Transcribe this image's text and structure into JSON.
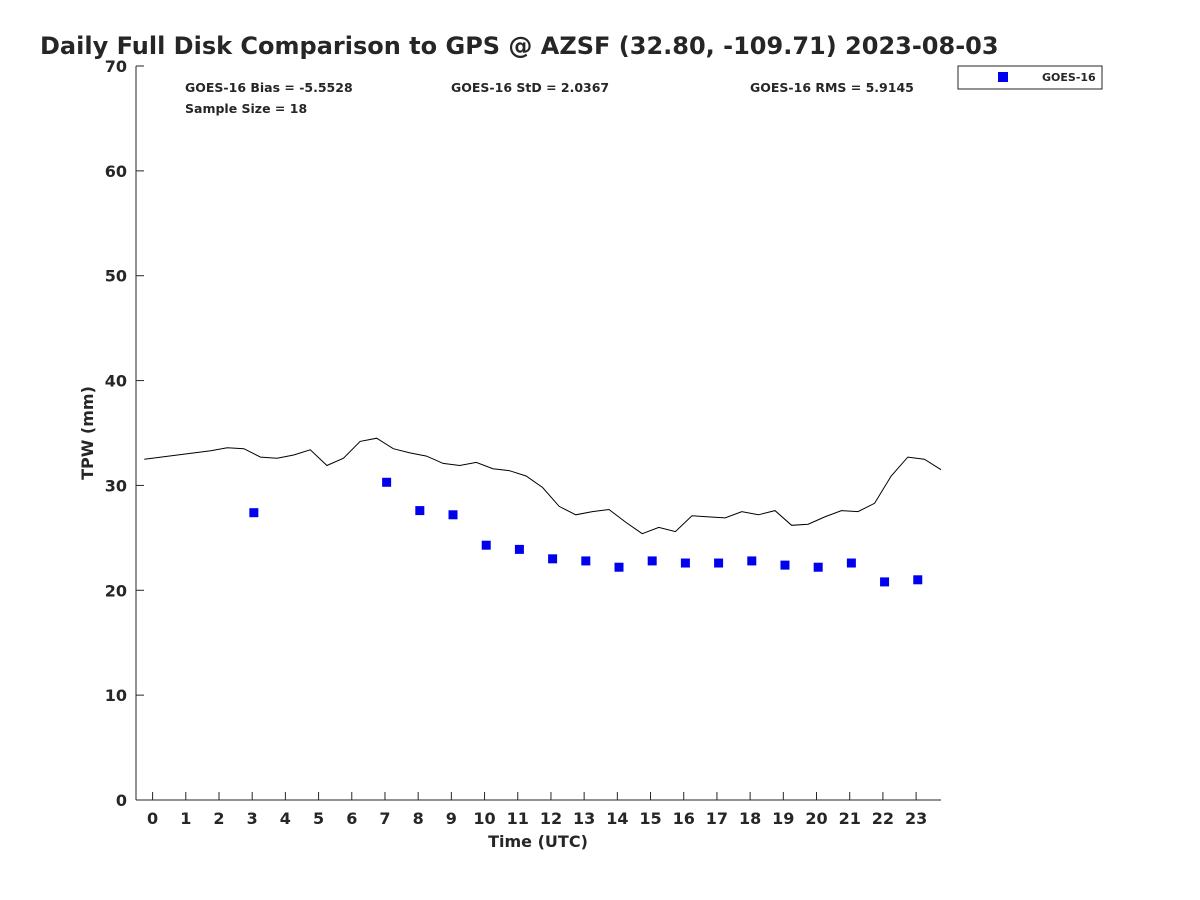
{
  "chart_data": {
    "type": "scatter",
    "title": "Daily Full Disk Comparison to GPS @ AZSF (32.80, -109.71) 2023-08-03",
    "xlabel": "Time (UTC)",
    "ylabel": "TPW (mm)",
    "xlim": [
      -0.5,
      23.75
    ],
    "ylim": [
      0,
      70
    ],
    "x_ticks": [
      0,
      1,
      2,
      3,
      4,
      5,
      6,
      7,
      8,
      9,
      10,
      11,
      12,
      13,
      14,
      15,
      16,
      17,
      18,
      19,
      20,
      21,
      22,
      23
    ],
    "x_tick_labels": [
      "0",
      "1",
      "2",
      "3",
      "4",
      "5",
      "6",
      "7",
      "8",
      "9",
      "10",
      "11",
      "12",
      "13",
      "14",
      "15",
      "16",
      "17",
      "18",
      "19",
      "20",
      "21",
      "22",
      "23"
    ],
    "y_ticks": [
      0,
      10,
      20,
      30,
      40,
      50,
      60,
      70
    ],
    "y_tick_labels": [
      "0",
      "10",
      "20",
      "30",
      "40",
      "50",
      "60",
      "70"
    ],
    "grid": false,
    "legend_position": "top-right",
    "stats": {
      "bias": "GOES-16 Bias = -5.5528",
      "std": "GOES-16 StD = 2.0367",
      "rms": "GOES-16 RMS = 5.9145",
      "sample": "Sample Size = 18"
    },
    "series": [
      {
        "name": "GOES-16",
        "kind": "scatter",
        "color": "#0000ee",
        "x": [
          3.05,
          7.05,
          8.05,
          9.05,
          10.05,
          11.05,
          12.05,
          13.05,
          14.05,
          15.05,
          16.05,
          17.05,
          18.05,
          19.05,
          20.05,
          21.05,
          22.05,
          23.05
        ],
        "y": [
          27.4,
          30.3,
          27.6,
          27.2,
          24.3,
          23.9,
          23.0,
          22.8,
          22.2,
          22.8,
          22.6,
          22.6,
          22.8,
          22.4,
          22.2,
          22.6,
          20.8,
          21.0
        ]
      },
      {
        "kind": "line",
        "color": "#000000",
        "x": [
          -0.25,
          0.25,
          0.75,
          1.25,
          1.75,
          2.25,
          2.75,
          3.25,
          3.75,
          4.25,
          4.75,
          5.25,
          5.75,
          6.25,
          6.75,
          7.25,
          7.75,
          8.25,
          8.75,
          9.25,
          9.75,
          10.25,
          10.75,
          11.25,
          11.75,
          12.25,
          12.75,
          13.25,
          13.75,
          14.25,
          14.75,
          15.25,
          15.75,
          16.25,
          16.75,
          17.25,
          17.75,
          18.25,
          18.75,
          19.25,
          19.75,
          20.25,
          20.75,
          21.25,
          21.75,
          22.25,
          22.75,
          23.25,
          23.75
        ],
        "y": [
          32.5,
          32.7,
          32.9,
          33.1,
          33.3,
          33.6,
          33.5,
          32.7,
          32.6,
          32.9,
          33.4,
          31.9,
          32.6,
          34.2,
          34.5,
          33.5,
          33.1,
          32.8,
          32.1,
          31.9,
          32.2,
          31.6,
          31.4,
          30.9,
          29.8,
          28.0,
          27.2,
          27.5,
          27.7,
          26.5,
          25.4,
          26.0,
          25.6,
          27.1,
          27.0,
          26.9,
          27.5,
          27.2,
          27.6,
          26.2,
          26.3,
          27.0,
          27.6,
          27.5,
          28.3,
          30.9,
          32.7,
          32.5,
          31.5
        ]
      }
    ]
  }
}
